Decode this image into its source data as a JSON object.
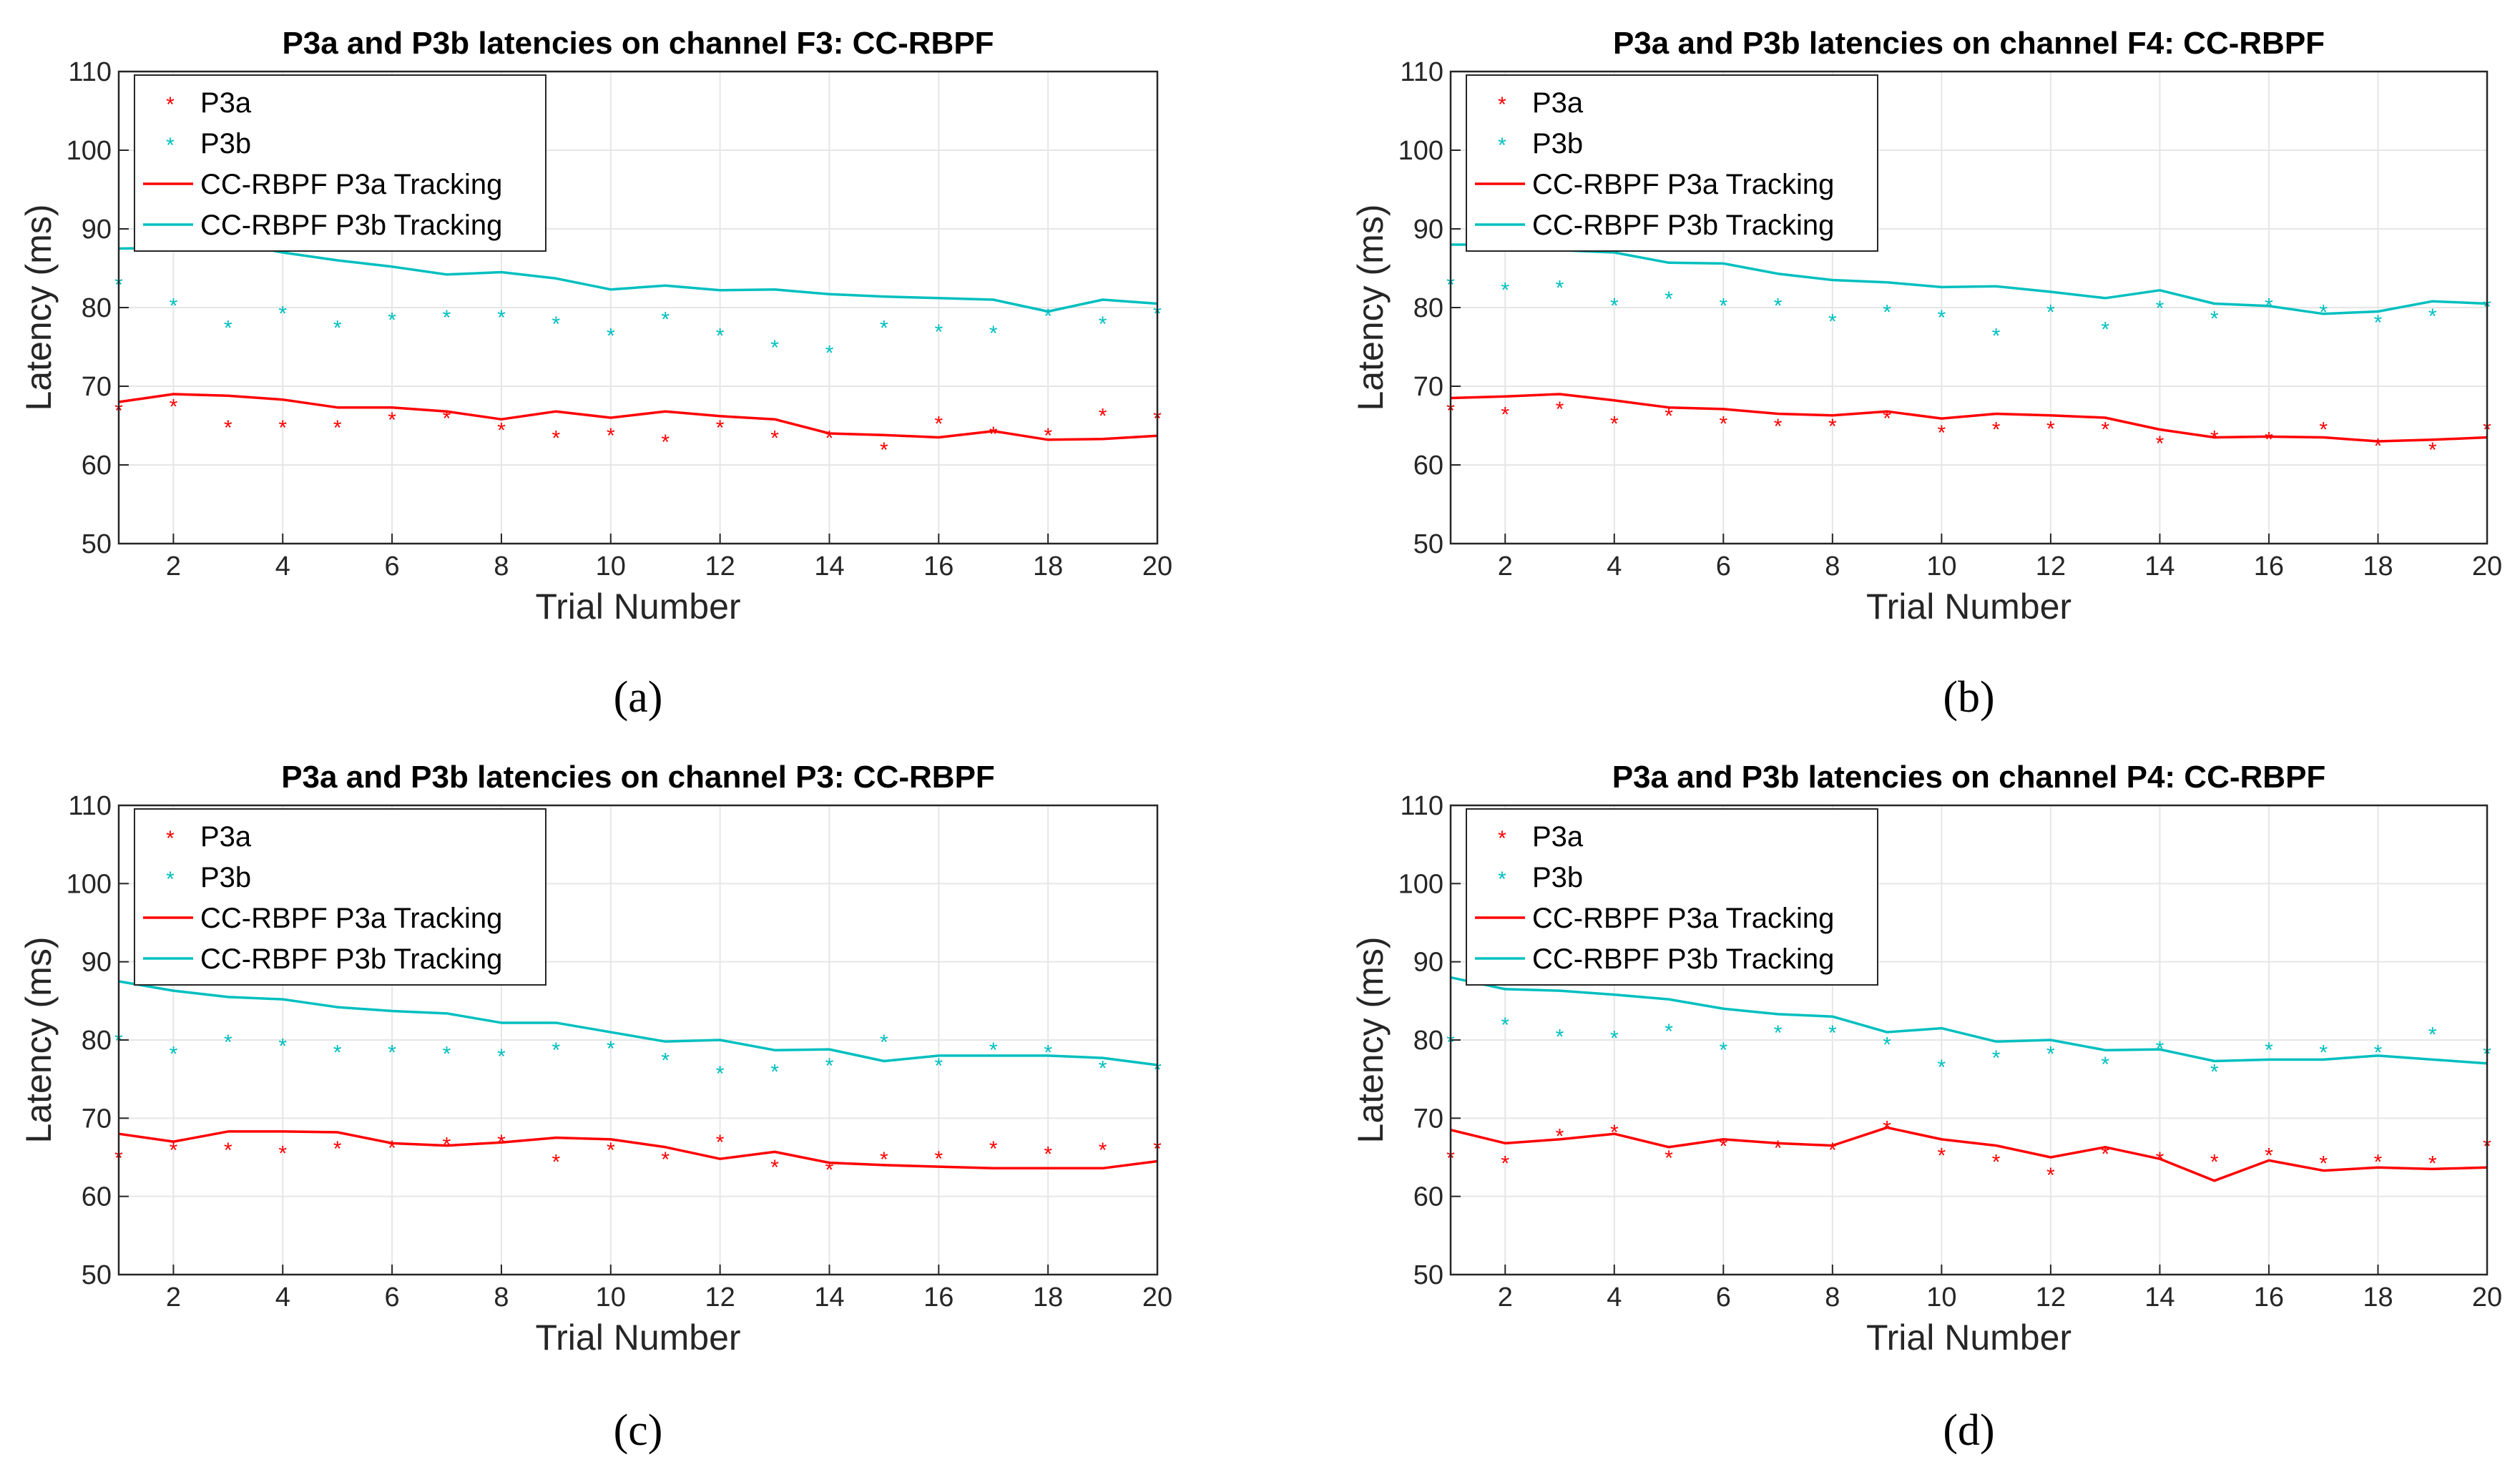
{
  "colors": {
    "p3a": "#ff0000",
    "p3b": "#00bfbf",
    "axis": "#262626",
    "grid": "#e6e6e6"
  },
  "chart_data": [
    {
      "type": "line",
      "panel": "a",
      "caption": "(a)",
      "title": "P3a and P3b latencies on channel F3: CC-RBPF",
      "xlabel": "Trial Number",
      "ylabel": "Latency (ms)",
      "xlim": [
        1,
        20
      ],
      "ylim": [
        50,
        110
      ],
      "xticks": [
        2,
        4,
        6,
        8,
        10,
        12,
        14,
        16,
        18,
        20
      ],
      "yticks": [
        50,
        60,
        70,
        80,
        90,
        100,
        110
      ],
      "grid": true,
      "legend_position": "top-left",
      "legend": [
        "P3a",
        "P3b",
        "CC-RBPF P3a Tracking",
        "CC-RBPF P3b Tracking"
      ],
      "x": [
        1,
        2,
        3,
        4,
        5,
        6,
        7,
        8,
        9,
        10,
        11,
        12,
        13,
        14,
        15,
        16,
        17,
        18,
        19,
        20
      ],
      "series": [
        {
          "name": "P3a",
          "kind": "marker",
          "color_key": "p3a",
          "values": [
            67,
            67.5,
            64.8,
            64.8,
            64.8,
            65.8,
            66,
            64.5,
            63.5,
            63.8,
            63,
            64.8,
            63.5,
            63.5,
            62,
            65.3,
            64,
            63.8,
            66.3,
            66
          ]
        },
        {
          "name": "P3b",
          "kind": "marker",
          "color_key": "p3b",
          "values": [
            83,
            80.3,
            77.5,
            79.3,
            77.5,
            78.5,
            78.8,
            78.8,
            78,
            76.5,
            78.6,
            76.5,
            75,
            74.3,
            77.5,
            77,
            76.8,
            79,
            78,
            79.3
          ]
        },
        {
          "name": "CC-RBPF P3a Tracking",
          "kind": "line",
          "color_key": "p3a",
          "values": [
            68,
            69,
            68.8,
            68.3,
            67.3,
            67.3,
            66.8,
            65.8,
            66.8,
            66,
            66.8,
            66.2,
            65.8,
            64,
            63.8,
            63.5,
            64.3,
            63.2,
            63.3,
            63.7
          ]
        },
        {
          "name": "CC-RBPF P3b Tracking",
          "kind": "line",
          "color_key": "p3b",
          "values": [
            87.5,
            87.6,
            88.3,
            87,
            86,
            85.2,
            84.2,
            84.5,
            83.7,
            82.3,
            82.8,
            82.2,
            82.3,
            81.7,
            81.4,
            81.2,
            81,
            79.5,
            81,
            80.5
          ]
        }
      ]
    },
    {
      "type": "line",
      "panel": "b",
      "caption": "(b)",
      "title": "P3a and P3b latencies on channel F4: CC-RBPF",
      "xlabel": "Trial Number",
      "ylabel": "Latency (ms)",
      "xlim": [
        1,
        20
      ],
      "ylim": [
        50,
        110
      ],
      "xticks": [
        2,
        4,
        6,
        8,
        10,
        12,
        14,
        16,
        18,
        20
      ],
      "yticks": [
        50,
        60,
        70,
        80,
        90,
        100,
        110
      ],
      "grid": true,
      "legend_position": "top-left",
      "legend": [
        "P3a",
        "P3b",
        "CC-RBPF P3a Tracking",
        "CC-RBPF P3b Tracking"
      ],
      "x": [
        1,
        2,
        3,
        4,
        5,
        6,
        7,
        8,
        9,
        10,
        11,
        12,
        13,
        14,
        15,
        16,
        17,
        18,
        19,
        20
      ],
      "series": [
        {
          "name": "P3a",
          "kind": "marker",
          "color_key": "p3a",
          "values": [
            67,
            66.5,
            67.2,
            65.3,
            66.3,
            65.3,
            65,
            65,
            66,
            64.2,
            64.6,
            64.7,
            64.6,
            62.8,
            63.5,
            63.3,
            64.6,
            62.5,
            62,
            64.6
          ]
        },
        {
          "name": "P3b",
          "kind": "marker",
          "color_key": "p3b",
          "values": [
            83,
            82.3,
            82.6,
            80.3,
            81.2,
            80.3,
            80.3,
            78.3,
            79.5,
            78.8,
            76.5,
            79.5,
            77.3,
            80,
            78.7,
            80.3,
            79.5,
            78.2,
            79,
            80.2
          ]
        },
        {
          "name": "CC-RBPF P3a Tracking",
          "kind": "line",
          "color_key": "p3a",
          "values": [
            68.5,
            68.7,
            69,
            68.2,
            67.3,
            67.1,
            66.5,
            66.3,
            66.8,
            65.9,
            66.5,
            66.3,
            66,
            64.5,
            63.5,
            63.6,
            63.5,
            63,
            63.2,
            63.5
          ]
        },
        {
          "name": "CC-RBPF P3b Tracking",
          "kind": "line",
          "color_key": "p3b",
          "values": [
            88,
            88,
            87.3,
            87,
            85.7,
            85.6,
            84.3,
            83.5,
            83.2,
            82.6,
            82.7,
            82,
            81.2,
            82.2,
            80.5,
            80.2,
            79.2,
            79.5,
            80.8,
            80.5
          ]
        }
      ]
    },
    {
      "type": "line",
      "panel": "c",
      "caption": "(c)",
      "title": "P3a and P3b latencies on channel P3: CC-RBPF",
      "xlabel": "Trial Number",
      "ylabel": "Latency (ms)",
      "xlim": [
        1,
        20
      ],
      "ylim": [
        50,
        110
      ],
      "xticks": [
        2,
        4,
        6,
        8,
        10,
        12,
        14,
        16,
        18,
        20
      ],
      "yticks": [
        50,
        60,
        70,
        80,
        90,
        100,
        110
      ],
      "grid": true,
      "legend_position": "top-left",
      "legend": [
        "P3a",
        "P3b",
        "CC-RBPF P3a Tracking",
        "CC-RBPF P3b Tracking"
      ],
      "x": [
        1,
        2,
        3,
        4,
        5,
        6,
        7,
        8,
        9,
        10,
        11,
        12,
        13,
        14,
        15,
        16,
        17,
        18,
        19,
        20
      ],
      "series": [
        {
          "name": "P3a",
          "kind": "marker",
          "color_key": "p3a",
          "values": [
            65,
            66,
            66,
            65.6,
            66.2,
            66.3,
            66.7,
            67,
            64.5,
            66,
            64.8,
            67,
            63.8,
            63.5,
            64.8,
            64.9,
            66.2,
            65.5,
            66,
            66.2
          ]
        },
        {
          "name": "P3b",
          "kind": "marker",
          "color_key": "p3b",
          "values": [
            80,
            78.3,
            79.8,
            79.3,
            78.5,
            78.5,
            78.3,
            78,
            78.8,
            79,
            77.5,
            75.8,
            76,
            76.8,
            79.8,
            76.8,
            78.8,
            78.5,
            76.5,
            76.3
          ]
        },
        {
          "name": "CC-RBPF P3a Tracking",
          "kind": "line",
          "color_key": "p3a",
          "values": [
            68,
            67,
            68.3,
            68.3,
            68.2,
            66.8,
            66.5,
            66.9,
            67.5,
            67.3,
            66.3,
            64.8,
            65.7,
            64.3,
            64,
            63.8,
            63.6,
            63.6,
            63.6,
            64.5
          ]
        },
        {
          "name": "CC-RBPF P3b Tracking",
          "kind": "line",
          "color_key": "p3b",
          "values": [
            87.5,
            86.3,
            85.5,
            85.2,
            84.2,
            83.7,
            83.4,
            82.2,
            82.2,
            81,
            79.8,
            80,
            78.7,
            78.8,
            77.3,
            78,
            78,
            78,
            77.7,
            76.8
          ]
        }
      ]
    },
    {
      "type": "line",
      "panel": "d",
      "caption": "(d)",
      "title": "P3a and P3b latencies on channel P4: CC-RBPF",
      "xlabel": "Trial Number",
      "ylabel": "Latency (ms)",
      "xlim": [
        1,
        20
      ],
      "ylim": [
        50,
        110
      ],
      "xticks": [
        2,
        4,
        6,
        8,
        10,
        12,
        14,
        16,
        18,
        20
      ],
      "yticks": [
        50,
        60,
        70,
        80,
        90,
        100,
        110
      ],
      "grid": true,
      "legend_position": "top-left",
      "legend": [
        "P3a",
        "P3b",
        "CC-RBPF P3a Tracking",
        "CC-RBPF P3b Tracking"
      ],
      "x": [
        1,
        2,
        3,
        4,
        5,
        6,
        7,
        8,
        9,
        10,
        11,
        12,
        13,
        14,
        15,
        16,
        17,
        18,
        19,
        20
      ],
      "series": [
        {
          "name": "P3a",
          "kind": "marker",
          "color_key": "p3a",
          "values": [
            65,
            64.3,
            67.8,
            68.3,
            65,
            66.5,
            66.3,
            66,
            68.8,
            65.3,
            64.5,
            62.8,
            65.5,
            64.8,
            64.5,
            65.3,
            64.3,
            64.5,
            64.3,
            66.5
          ]
        },
        {
          "name": "P3b",
          "kind": "marker",
          "color_key": "p3b",
          "values": [
            79.8,
            82,
            80.5,
            80.3,
            81.2,
            78.8,
            81,
            81,
            79.5,
            76.6,
            77.8,
            78.3,
            77,
            79,
            76,
            78.8,
            78.5,
            78.5,
            80.8,
            78.3
          ]
        },
        {
          "name": "CC-RBPF P3a Tracking",
          "kind": "line",
          "color_key": "p3a",
          "values": [
            68.5,
            66.8,
            67.3,
            68,
            66.3,
            67.3,
            66.8,
            66.5,
            68.8,
            67.3,
            66.5,
            65,
            66.3,
            64.8,
            62,
            64.6,
            63.3,
            63.7,
            63.5,
            63.7
          ]
        },
        {
          "name": "CC-RBPF P3b Tracking",
          "kind": "line",
          "color_key": "p3b",
          "values": [
            88,
            86.5,
            86.3,
            85.8,
            85.2,
            84,
            83.3,
            83,
            81,
            81.5,
            79.8,
            80,
            78.7,
            78.8,
            77.3,
            77.5,
            77.5,
            78,
            77.5,
            77
          ]
        }
      ]
    }
  ]
}
